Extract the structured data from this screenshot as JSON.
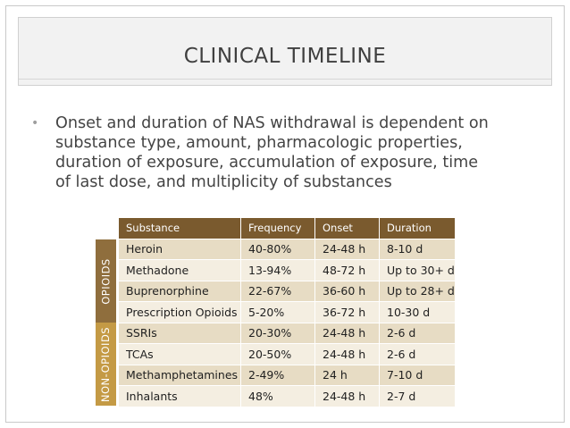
{
  "slide": {
    "title": "CLINICAL TIMELINE",
    "bullet_lines": [
      "Onset and duration of NAS withdrawal is dependent on",
      "substance type, amount, pharmacologic properties,",
      "duration of exposure, accumulation of exposure, time",
      "of last dose, and multiplicity of substances"
    ]
  },
  "table": {
    "headers": [
      "Substance",
      "Frequency",
      "Onset",
      "Duration"
    ],
    "groups": [
      "OPIOIDS",
      "NON-OPIOIDS"
    ],
    "rows": [
      [
        "Heroin",
        "40-80%",
        "24-48 h",
        "8-10 d"
      ],
      [
        "Methadone",
        "13-94%",
        "48-72 h",
        "Up to 30+ d"
      ],
      [
        "Buprenorphine",
        "22-67%",
        "36-60 h",
        "Up to 28+ d"
      ],
      [
        "Prescription Opioids",
        "5-20%",
        "36-72 h",
        "10-30 d"
      ],
      [
        "SSRIs",
        "20-30%",
        "24-48 h",
        "2-6 d"
      ],
      [
        "TCAs",
        "20-50%",
        "24-48 h",
        "2-6 d"
      ],
      [
        "Methamphetamines",
        "2-49%",
        "24 h",
        "7-10 d"
      ],
      [
        "Inhalants",
        "48%",
        "24-48 h",
        "2-7 d"
      ]
    ]
  },
  "colors": {
    "header": "#7a5a2e",
    "opioids_label": "#8f6e3d",
    "non_opioids_label": "#c49a45",
    "row_dark": "#e7dcc4",
    "row_light": "#f4eee1"
  }
}
